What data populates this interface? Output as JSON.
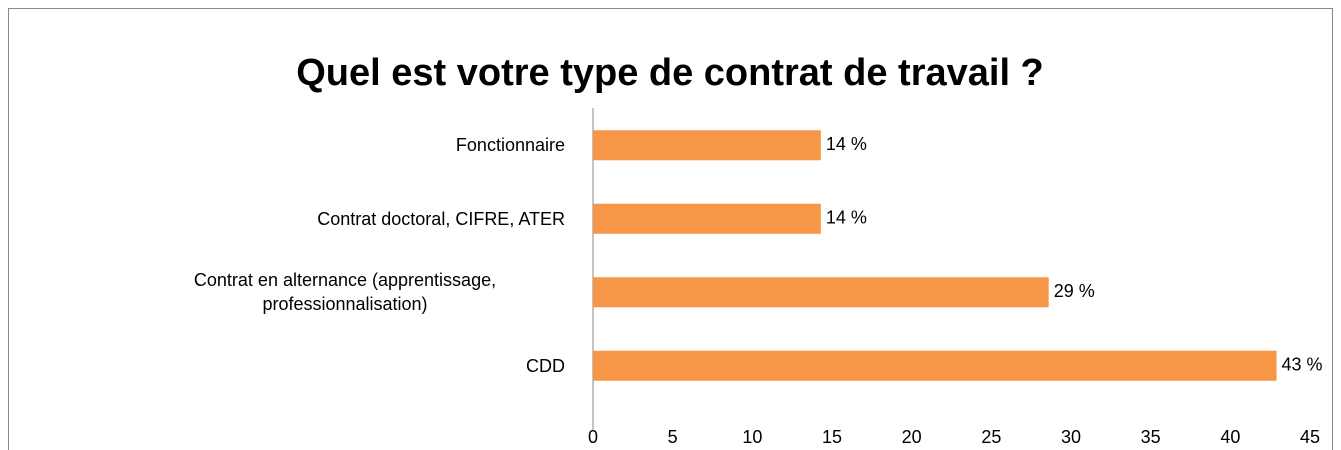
{
  "chart_data": {
    "type": "barh",
    "title": "Quel est votre type de contrat de travail ?",
    "categories": [
      "Fonctionnaire",
      "Contrat doctoral, CIFRE, ATER",
      "Contrat en alternance (apprentissage, professionnalisation)",
      "CDD"
    ],
    "values": [
      14.3,
      14.3,
      28.6,
      42.9
    ],
    "value_labels": [
      "14 %",
      "14 %",
      "29 %",
      "43 %"
    ],
    "color": "#f79646",
    "xlim": [
      0,
      45
    ],
    "xticks": [
      0,
      5,
      10,
      15,
      20,
      25,
      30,
      35,
      40,
      45
    ],
    "grid": false
  }
}
